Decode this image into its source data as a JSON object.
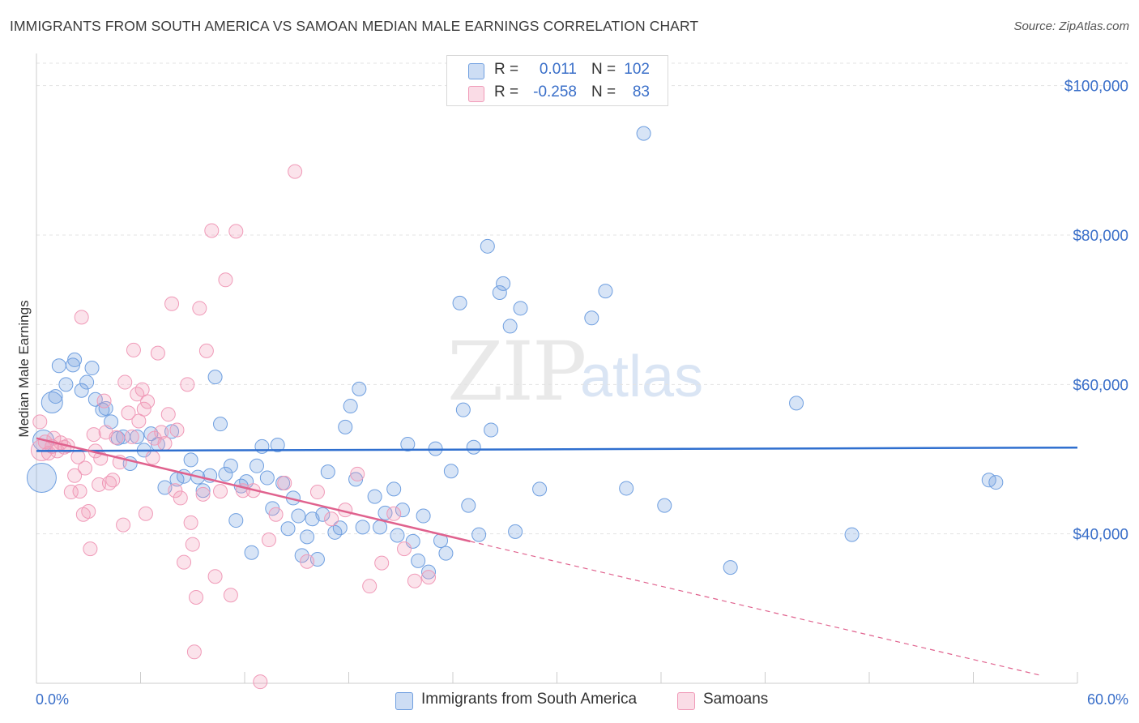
{
  "title": "IMMIGRANTS FROM SOUTH AMERICA VS SAMOAN MEDIAN MALE EARNINGS CORRELATION CHART",
  "source": "Source: ZipAtlas.com",
  "watermark": {
    "zip": "ZIP",
    "atlas": "atlas"
  },
  "legend": {
    "rows": [
      {
        "r_label": "R =",
        "r_value": "0.011",
        "n_label": "N =",
        "n_value": "102",
        "color": "#6f9fe0"
      },
      {
        "r_label": "R =",
        "r_value": "-0.258",
        "n_label": "N =",
        "n_value": "83",
        "color": "#f09ab8"
      }
    ]
  },
  "bottom_legend": [
    {
      "label": "Immigrants from South America",
      "color": "#6f9fe0"
    },
    {
      "label": "Samoans",
      "color": "#f09ab8"
    }
  ],
  "chart_data": {
    "type": "scatter",
    "title": "IMMIGRANTS FROM SOUTH AMERICA VS SAMOAN MEDIAN MALE EARNINGS CORRELATION CHART",
    "xlabel": "",
    "ylabel": "Median Male Earnings",
    "xlim": [
      0,
      60
    ],
    "ylim": [
      20000,
      103000
    ],
    "x_tick_labels": [
      "0.0%",
      "60.0%"
    ],
    "y_ticks": [
      40000,
      60000,
      80000,
      100000
    ],
    "y_tick_labels": [
      "$40,000",
      "$60,000",
      "$80,000",
      "$100,000"
    ],
    "grid": true,
    "legend_position": "top-center",
    "series": [
      {
        "name": "Immigrants from South America",
        "color": "#6f9fe0",
        "line_color": "#2f6fcf",
        "trend": {
          "x": [
            0,
            60
          ],
          "y": [
            51100,
            51550
          ],
          "dashed_to": null
        },
        "points": [
          [
            0.3,
            47500,
            3
          ],
          [
            0.4,
            52500,
            2
          ],
          [
            0.9,
            57600,
            2
          ],
          [
            1.1,
            58400,
            1
          ],
          [
            1.3,
            62500,
            1
          ],
          [
            1.7,
            60000,
            1
          ],
          [
            2.1,
            62600,
            1
          ],
          [
            2.2,
            63300,
            1
          ],
          [
            2.6,
            59200,
            1
          ],
          [
            2.9,
            60300,
            1
          ],
          [
            3.2,
            62200,
            1
          ],
          [
            3.4,
            58000,
            1
          ],
          [
            3.8,
            56600,
            1
          ],
          [
            4.0,
            56800,
            1
          ],
          [
            4.3,
            55000,
            1
          ],
          [
            4.7,
            52800,
            1
          ],
          [
            5.0,
            53000,
            1
          ],
          [
            5.4,
            49400,
            1
          ],
          [
            5.8,
            53000,
            1
          ],
          [
            6.2,
            51200,
            1
          ],
          [
            6.6,
            53400,
            1
          ],
          [
            7.0,
            52000,
            1
          ],
          [
            7.4,
            46200,
            1
          ],
          [
            7.8,
            53700,
            1
          ],
          [
            8.1,
            47300,
            1
          ],
          [
            8.5,
            47700,
            1
          ],
          [
            8.9,
            49900,
            1
          ],
          [
            9.3,
            47600,
            1
          ],
          [
            9.6,
            45800,
            1
          ],
          [
            10.0,
            47800,
            1
          ],
          [
            10.3,
            61000,
            1
          ],
          [
            10.6,
            54700,
            1
          ],
          [
            10.9,
            48000,
            1
          ],
          [
            11.2,
            49100,
            1
          ],
          [
            11.5,
            41800,
            1
          ],
          [
            11.8,
            46400,
            1
          ],
          [
            12.1,
            47000,
            1
          ],
          [
            12.4,
            37500,
            1
          ],
          [
            12.7,
            49100,
            1
          ],
          [
            13.0,
            51700,
            1
          ],
          [
            13.3,
            47500,
            1
          ],
          [
            13.6,
            43400,
            1
          ],
          [
            13.9,
            51900,
            1
          ],
          [
            14.2,
            46800,
            1
          ],
          [
            14.5,
            40700,
            1
          ],
          [
            14.8,
            44800,
            1
          ],
          [
            15.1,
            42400,
            1
          ],
          [
            15.3,
            37100,
            1
          ],
          [
            15.6,
            39600,
            1
          ],
          [
            15.9,
            42000,
            1
          ],
          [
            16.2,
            36600,
            1
          ],
          [
            16.5,
            42600,
            1
          ],
          [
            16.8,
            48300,
            1
          ],
          [
            17.2,
            40200,
            1
          ],
          [
            17.5,
            40800,
            1
          ],
          [
            17.8,
            54300,
            1
          ],
          [
            18.1,
            57100,
            1
          ],
          [
            18.4,
            47300,
            1
          ],
          [
            18.6,
            59400,
            1
          ],
          [
            18.8,
            40900,
            1
          ],
          [
            19.5,
            45000,
            1
          ],
          [
            19.8,
            40900,
            1
          ],
          [
            20.1,
            42800,
            1
          ],
          [
            20.6,
            46000,
            1
          ],
          [
            20.8,
            39800,
            1
          ],
          [
            21.1,
            43200,
            1
          ],
          [
            21.4,
            52000,
            1
          ],
          [
            21.7,
            39000,
            1
          ],
          [
            22.0,
            36400,
            1
          ],
          [
            22.3,
            42400,
            1
          ],
          [
            22.6,
            34900,
            1
          ],
          [
            23.0,
            51400,
            1
          ],
          [
            23.3,
            39100,
            1
          ],
          [
            23.6,
            37400,
            1
          ],
          [
            23.9,
            48400,
            1
          ],
          [
            24.4,
            70900,
            1
          ],
          [
            24.6,
            56600,
            1
          ],
          [
            24.9,
            43800,
            1
          ],
          [
            25.2,
            51600,
            1
          ],
          [
            25.5,
            39900,
            1
          ],
          [
            26.0,
            78500,
            1
          ],
          [
            26.2,
            53900,
            1
          ],
          [
            26.7,
            72300,
            1
          ],
          [
            26.9,
            73500,
            1
          ],
          [
            27.3,
            67800,
            1
          ],
          [
            27.6,
            40300,
            1
          ],
          [
            27.9,
            70200,
            1
          ],
          [
            29.0,
            46000,
            1
          ],
          [
            32.0,
            68900,
            1
          ],
          [
            32.8,
            72500,
            1
          ],
          [
            34.0,
            46100,
            1
          ],
          [
            35.0,
            93600,
            1
          ],
          [
            36.2,
            43800,
            1
          ],
          [
            40.0,
            35500,
            1
          ],
          [
            43.8,
            57500,
            1
          ],
          [
            47.0,
            39900,
            1
          ],
          [
            54.9,
            47200,
            1
          ],
          [
            55.3,
            46900,
            1
          ]
        ]
      },
      {
        "name": "Samoans",
        "color": "#f09ab8",
        "line_color": "#e0628e",
        "trend": {
          "x": [
            0,
            25
          ],
          "y": [
            52800,
            39000
          ],
          "dashed_to": [
            58,
            21000
          ]
        },
        "points": [
          [
            0.2,
            55000,
            1
          ],
          [
            0.3,
            51200,
            2
          ],
          [
            0.5,
            52300,
            1
          ],
          [
            0.7,
            50800,
            1
          ],
          [
            0.9,
            51700,
            1
          ],
          [
            1.0,
            52800,
            1
          ],
          [
            1.2,
            51100,
            1
          ],
          [
            1.4,
            52200,
            1
          ],
          [
            1.6,
            51600,
            1
          ],
          [
            1.8,
            51800,
            1
          ],
          [
            2.0,
            45600,
            1
          ],
          [
            2.2,
            47800,
            1
          ],
          [
            2.4,
            50300,
            1
          ],
          [
            2.5,
            45700,
            1
          ],
          [
            2.6,
            69000,
            1
          ],
          [
            2.7,
            42600,
            1
          ],
          [
            2.8,
            48800,
            1
          ],
          [
            3.0,
            43000,
            1
          ],
          [
            3.1,
            38000,
            1
          ],
          [
            3.3,
            53300,
            1
          ],
          [
            3.4,
            51100,
            1
          ],
          [
            3.6,
            46600,
            1
          ],
          [
            3.7,
            50100,
            1
          ],
          [
            3.9,
            57800,
            1
          ],
          [
            4.0,
            53600,
            1
          ],
          [
            4.2,
            46800,
            1
          ],
          [
            4.4,
            47200,
            1
          ],
          [
            4.6,
            52900,
            1
          ],
          [
            4.8,
            49600,
            1
          ],
          [
            5.0,
            41200,
            1
          ],
          [
            5.1,
            60300,
            1
          ],
          [
            5.3,
            56200,
            1
          ],
          [
            5.5,
            53000,
            1
          ],
          [
            5.6,
            64600,
            1
          ],
          [
            5.8,
            58700,
            1
          ],
          [
            5.9,
            55100,
            1
          ],
          [
            6.1,
            59300,
            1
          ],
          [
            6.2,
            56700,
            1
          ],
          [
            6.3,
            42700,
            1
          ],
          [
            6.4,
            57700,
            1
          ],
          [
            6.7,
            50200,
            1
          ],
          [
            6.8,
            52800,
            1
          ],
          [
            7.0,
            64200,
            1
          ],
          [
            7.2,
            53600,
            1
          ],
          [
            7.4,
            52100,
            1
          ],
          [
            7.6,
            56000,
            1
          ],
          [
            7.8,
            70800,
            1
          ],
          [
            8.0,
            45800,
            1
          ],
          [
            8.1,
            53900,
            1
          ],
          [
            8.3,
            44800,
            1
          ],
          [
            8.5,
            36200,
            1
          ],
          [
            8.7,
            60000,
            1
          ],
          [
            8.9,
            41500,
            1
          ],
          [
            9.0,
            38600,
            1
          ],
          [
            9.2,
            31500,
            1
          ],
          [
            9.4,
            70200,
            1
          ],
          [
            9.6,
            45300,
            1
          ],
          [
            9.8,
            64500,
            1
          ],
          [
            10.1,
            80600,
            1
          ],
          [
            10.3,
            34300,
            1
          ],
          [
            10.6,
            45700,
            1
          ],
          [
            10.9,
            74000,
            1
          ],
          [
            11.2,
            31800,
            1
          ],
          [
            11.5,
            80500,
            1
          ],
          [
            11.9,
            45800,
            1
          ],
          [
            12.5,
            45800,
            1
          ],
          [
            12.9,
            20200,
            1
          ],
          [
            13.4,
            39200,
            1
          ],
          [
            13.8,
            42600,
            1
          ],
          [
            14.3,
            46800,
            1
          ],
          [
            14.9,
            88500,
            1
          ],
          [
            15.6,
            36300,
            1
          ],
          [
            16.2,
            45600,
            1
          ],
          [
            17.0,
            42000,
            1
          ],
          [
            17.8,
            43200,
            1
          ],
          [
            18.5,
            48000,
            1
          ],
          [
            19.2,
            33000,
            1
          ],
          [
            19.9,
            36100,
            1
          ],
          [
            20.6,
            42700,
            1
          ],
          [
            21.2,
            38000,
            1
          ],
          [
            21.8,
            33700,
            1
          ],
          [
            22.6,
            34200,
            1
          ],
          [
            9.1,
            24200,
            1
          ]
        ]
      }
    ]
  }
}
